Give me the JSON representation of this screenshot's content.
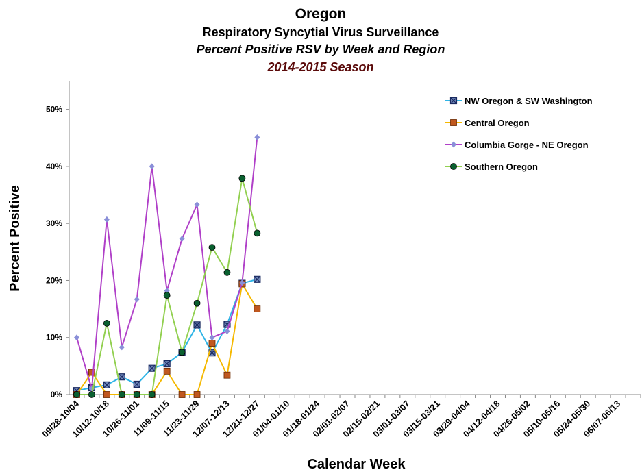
{
  "chart_data": {
    "type": "line",
    "title": "Oregon",
    "subtitle": [
      "Respiratory Syncytial Virus Surveillance",
      "Percent Positive RSV  by Week and Region",
      "2014-2015 Season"
    ],
    "x_label": "Calendar Week",
    "y_label": "Percent Positive",
    "categories": [
      "09/28-10/04",
      null,
      "10/12-10/18",
      null,
      "10/26-11/01",
      null,
      "11/09-11/15",
      null,
      "11/23-11/29",
      null,
      "12/07-12/13",
      null,
      "12/21-12/27",
      null,
      "01/04-01/10",
      null,
      "01/18-01/24",
      null,
      "02/01-02/07",
      null,
      "02/15-02/21",
      null,
      "03/01-03/07",
      null,
      "03/15-03/21",
      null,
      "03/29-04/04",
      null,
      "04/12-04/18",
      null,
      "04/26-05/02",
      null,
      "05/10-05/16",
      null,
      "05/24-05/30",
      null,
      "06/07-06/13",
      null
    ],
    "ylim": [
      0,
      55
    ],
    "yticks": [
      {
        "value": 0,
        "label": "0%"
      },
      {
        "value": 10,
        "label": "10%"
      },
      {
        "value": 20,
        "label": "20%"
      },
      {
        "value": 30,
        "label": "30%"
      },
      {
        "value": 40,
        "label": "40%"
      },
      {
        "value": 50,
        "label": "50%"
      }
    ],
    "grid": false,
    "legend": "top-right",
    "series": [
      {
        "name": "NW Oregon & SW Washington",
        "color": "#2fb4e6",
        "marker": "x-square",
        "marker_color": "#6f86b8",
        "values": [
          0.7,
          1.2,
          1.7,
          3.1,
          1.8,
          4.6,
          5.4,
          7.4,
          12.2,
          7.3,
          12.3,
          19.5,
          20.2,
          null,
          null,
          null,
          null,
          null,
          null,
          null,
          null,
          null,
          null,
          null,
          null,
          null,
          null,
          null,
          null,
          null,
          null,
          null,
          null,
          null,
          null,
          null,
          null,
          null
        ]
      },
      {
        "name": "Central Oregon",
        "color": "#f5b800",
        "marker": "square",
        "marker_color": "#c0581f",
        "values": [
          0,
          3.9,
          0,
          0,
          0,
          0,
          4.1,
          0,
          0,
          9.0,
          3.4,
          19.4,
          15.0,
          null,
          null,
          null,
          null,
          null,
          null,
          null,
          null,
          null,
          null,
          null,
          null,
          null,
          null,
          null,
          null,
          null,
          null,
          null,
          null,
          null,
          null,
          null,
          null,
          null
        ]
      },
      {
        "name": "Columbia Gorge - NE Oregon",
        "color": "#b040c8",
        "marker": "diamond",
        "marker_color": "#8a8fd8",
        "values": [
          10.0,
          1.0,
          30.7,
          8.3,
          16.7,
          40.0,
          18.2,
          27.3,
          33.3,
          10.0,
          11.1,
          19.6,
          45.1,
          null,
          null,
          null,
          null,
          null,
          null,
          null,
          null,
          null,
          null,
          null,
          null,
          null,
          null,
          null,
          null,
          null,
          null,
          null,
          null,
          null,
          null,
          null,
          null,
          null
        ]
      },
      {
        "name": "Southern Oregon",
        "color": "#92d050",
        "marker": "circle",
        "marker_color": "#0a6030",
        "values": [
          0,
          0,
          12.5,
          0,
          0,
          0,
          17.4,
          7.4,
          16.0,
          25.8,
          21.4,
          37.9,
          28.3,
          null,
          null,
          null,
          null,
          null,
          null,
          null,
          null,
          null,
          null,
          null,
          null,
          null,
          null,
          null,
          null,
          null,
          null,
          null,
          null,
          null,
          null,
          null,
          null,
          null
        ]
      }
    ]
  }
}
